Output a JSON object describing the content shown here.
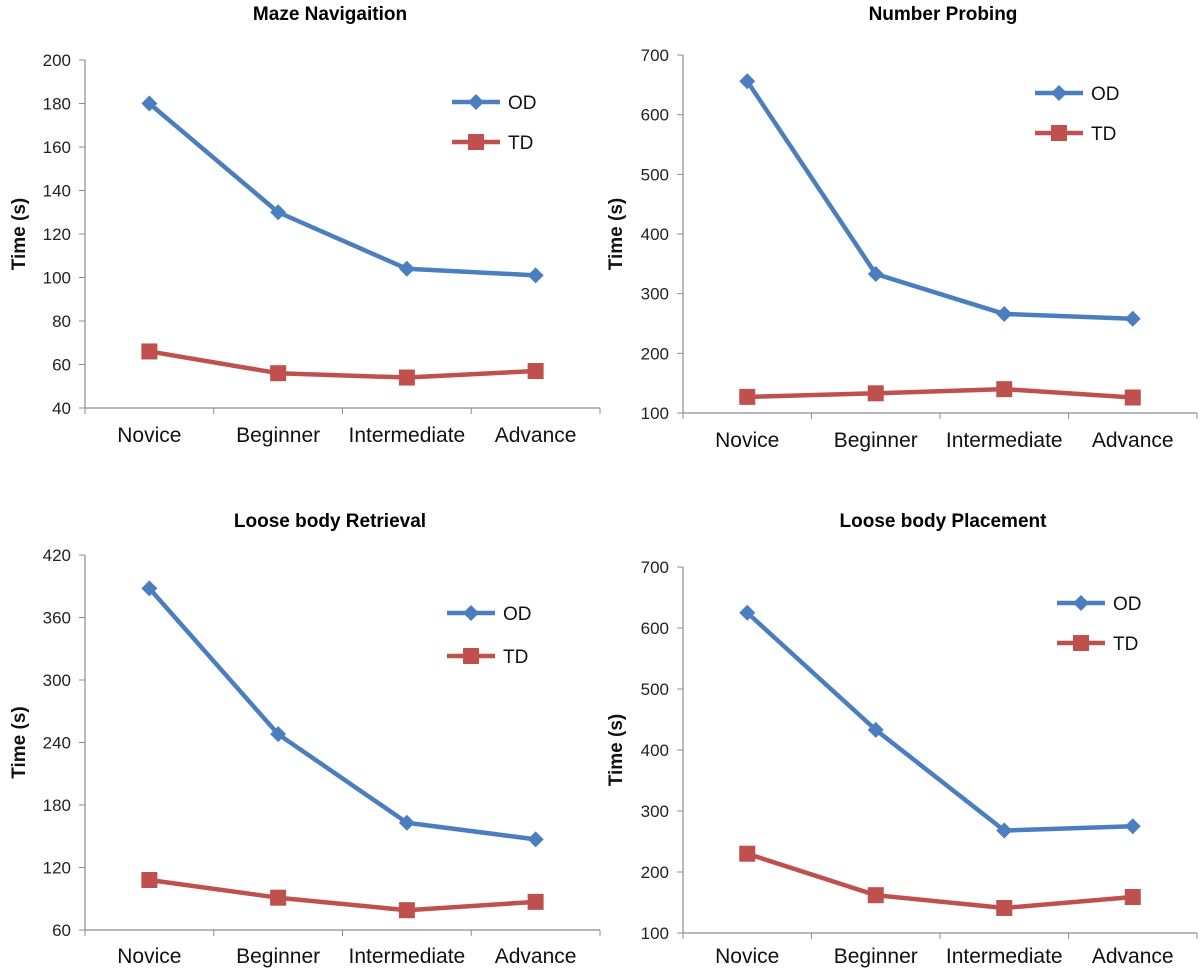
{
  "colors": {
    "od": "#4a7ebf",
    "td": "#c0504d",
    "axis": "#8c8c8c"
  },
  "legend": {
    "od": "OD",
    "td": "TD"
  },
  "chart_data": [
    {
      "type": "line",
      "title": "Maze Navigaition",
      "xlabel": "",
      "ylabel": "Time (s)",
      "categories": [
        "Novice",
        "Beginner",
        "Intermediate",
        "Advance"
      ],
      "ylim": [
        40,
        200
      ],
      "yticks": [
        40,
        60,
        80,
        100,
        120,
        140,
        160,
        180,
        200
      ],
      "grid": false,
      "legend_position": "top-right",
      "series": [
        {
          "name": "OD",
          "marker": "diamond",
          "values": [
            180,
            130,
            104,
            101
          ]
        },
        {
          "name": "TD",
          "marker": "square",
          "values": [
            66,
            56,
            54,
            57
          ]
        }
      ]
    },
    {
      "type": "line",
      "title": "Number Probing",
      "xlabel": "",
      "ylabel": "Time (s)",
      "categories": [
        "Novice",
        "Beginner",
        "Intermediate",
        "Advance"
      ],
      "ylim": [
        100,
        700
      ],
      "yticks": [
        100,
        200,
        300,
        400,
        500,
        600,
        700
      ],
      "grid": false,
      "legend_position": "top-right",
      "series": [
        {
          "name": "OD",
          "marker": "diamond",
          "values": [
            656,
            333,
            266,
            258
          ]
        },
        {
          "name": "TD",
          "marker": "square",
          "values": [
            127,
            133,
            140,
            126
          ]
        }
      ]
    },
    {
      "type": "line",
      "title": "Loose body Retrieval",
      "xlabel": "",
      "ylabel": "Time (s)",
      "categories": [
        "Novice",
        "Beginner",
        "Intermediate",
        "Advance"
      ],
      "ylim": [
        60,
        420
      ],
      "yticks": [
        60,
        120,
        180,
        240,
        300,
        360,
        420
      ],
      "grid": false,
      "legend_position": "top-right",
      "series": [
        {
          "name": "OD",
          "marker": "diamond",
          "values": [
            388,
            248,
            163,
            147
          ]
        },
        {
          "name": "TD",
          "marker": "square",
          "values": [
            108,
            91,
            79,
            87
          ]
        }
      ]
    },
    {
      "type": "line",
      "title": "Loose body Placement",
      "xlabel": "",
      "ylabel": "Time (s)",
      "categories": [
        "Novice",
        "Beginner",
        "Intermediate",
        "Advance"
      ],
      "ylim": [
        100,
        700
      ],
      "yticks": [
        100,
        200,
        300,
        400,
        500,
        600,
        700
      ],
      "grid": false,
      "legend_position": "top-right",
      "series": [
        {
          "name": "OD",
          "marker": "diamond",
          "values": [
            625,
            433,
            268,
            275
          ]
        },
        {
          "name": "TD",
          "marker": "square",
          "values": [
            230,
            162,
            141,
            159
          ]
        }
      ]
    }
  ]
}
